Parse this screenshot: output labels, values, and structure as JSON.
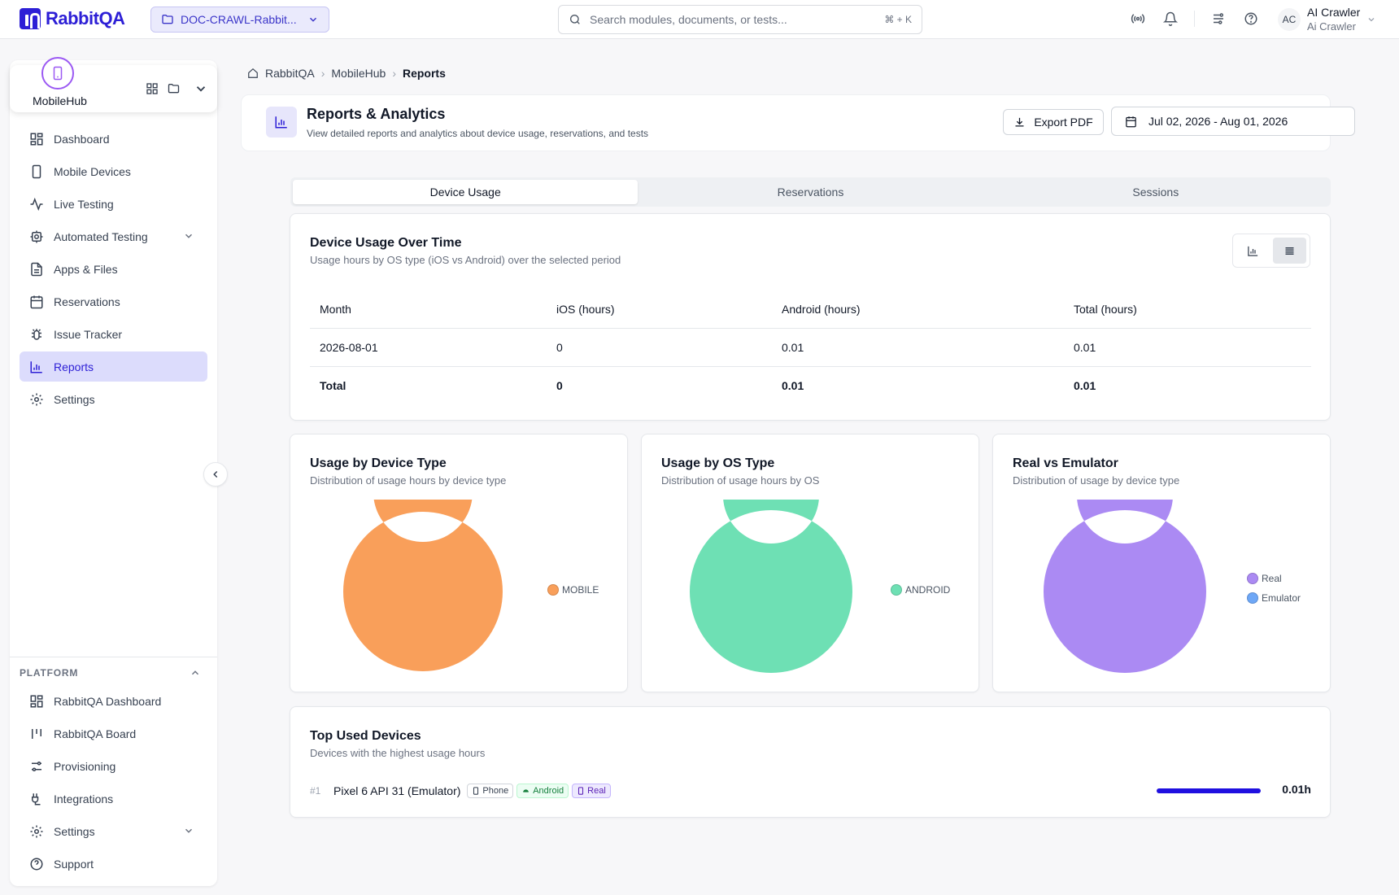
{
  "brand": {
    "name": "RabbitQA",
    "color": "#2d1fd6"
  },
  "project": {
    "name": "DOC-CRAWL-Rabbit..."
  },
  "search": {
    "placeholder": "Search modules, documents, or tests...",
    "shortcut": "⌘ + K"
  },
  "user": {
    "initials": "AC",
    "name": "AI Crawler",
    "subtitle": "Ai Crawler"
  },
  "module": {
    "name": "MobileHub"
  },
  "sidebar": {
    "items": [
      {
        "label": "Dashboard",
        "icon": "dashboard-icon"
      },
      {
        "label": "Mobile Devices",
        "icon": "phone-icon"
      },
      {
        "label": "Live Testing",
        "icon": "activity-icon"
      },
      {
        "label": "Automated Testing",
        "icon": "bot-icon",
        "expandable": true
      },
      {
        "label": "Apps & Files",
        "icon": "file-icon"
      },
      {
        "label": "Reservations",
        "icon": "calendar-icon"
      },
      {
        "label": "Issue Tracker",
        "icon": "bug-icon"
      },
      {
        "label": "Reports",
        "icon": "bar-chart-icon",
        "active": true
      },
      {
        "label": "Settings",
        "icon": "gear-icon"
      }
    ]
  },
  "platform": {
    "header": "PLATFORM",
    "items": [
      {
        "label": "RabbitQA Dashboard",
        "icon": "dashboard-icon"
      },
      {
        "label": "RabbitQA Board",
        "icon": "board-icon"
      },
      {
        "label": "Provisioning",
        "icon": "sliders-icon"
      },
      {
        "label": "Integrations",
        "icon": "plug-icon"
      },
      {
        "label": "Settings",
        "icon": "gear-icon",
        "expandable": true
      },
      {
        "label": "Support",
        "icon": "help-icon"
      }
    ]
  },
  "breadcrumb": [
    "RabbitQA",
    "MobileHub",
    "Reports"
  ],
  "header": {
    "title": "Reports & Analytics",
    "subtitle": "View detailed reports and analytics about device usage, reservations, and tests",
    "export_label": "Export PDF",
    "date_range": "Jul 02, 2026 - Aug 01, 2026"
  },
  "tabs": [
    {
      "label": "Device Usage",
      "active": true
    },
    {
      "label": "Reservations",
      "active": false
    },
    {
      "label": "Sessions",
      "active": false
    }
  ],
  "usage": {
    "title": "Device Usage Over Time",
    "subtitle": "Usage hours by OS type (iOS vs Android) over the selected period",
    "columns": [
      "Month",
      "iOS (hours)",
      "Android (hours)",
      "Total (hours)"
    ],
    "rows": [
      [
        "2026-08-01",
        "0",
        "0.01",
        "0.01"
      ]
    ],
    "total": [
      "Total",
      "0",
      "0.01",
      "0.01"
    ]
  },
  "chart_data": [
    {
      "type": "pie",
      "title": "Usage by Device Type",
      "subtitle": "Distribution of usage hours by device type",
      "categories": [
        "MOBILE"
      ],
      "values": [
        100
      ],
      "colors": [
        "#f99f5a"
      ]
    },
    {
      "type": "pie",
      "title": "Usage by OS Type",
      "subtitle": "Distribution of usage hours by OS",
      "categories": [
        "ANDROID"
      ],
      "values": [
        100
      ],
      "colors": [
        "#6ee0b4"
      ]
    },
    {
      "type": "pie",
      "title": "Real vs Emulator",
      "subtitle": "Distribution of usage by device type",
      "categories": [
        "Real",
        "Emulator"
      ],
      "values": [
        100,
        0
      ],
      "colors": [
        "#ab8af3",
        "#6ea7f6"
      ]
    }
  ],
  "top_devices": {
    "title": "Top Used Devices",
    "subtitle": "Devices with the highest usage hours",
    "items": [
      {
        "rank": "#1",
        "name": "Pixel 6 API 31 (Emulator)",
        "tags": [
          "Phone",
          "Android",
          "Real"
        ],
        "usage": "0.01h",
        "share": 1.0
      }
    ]
  }
}
